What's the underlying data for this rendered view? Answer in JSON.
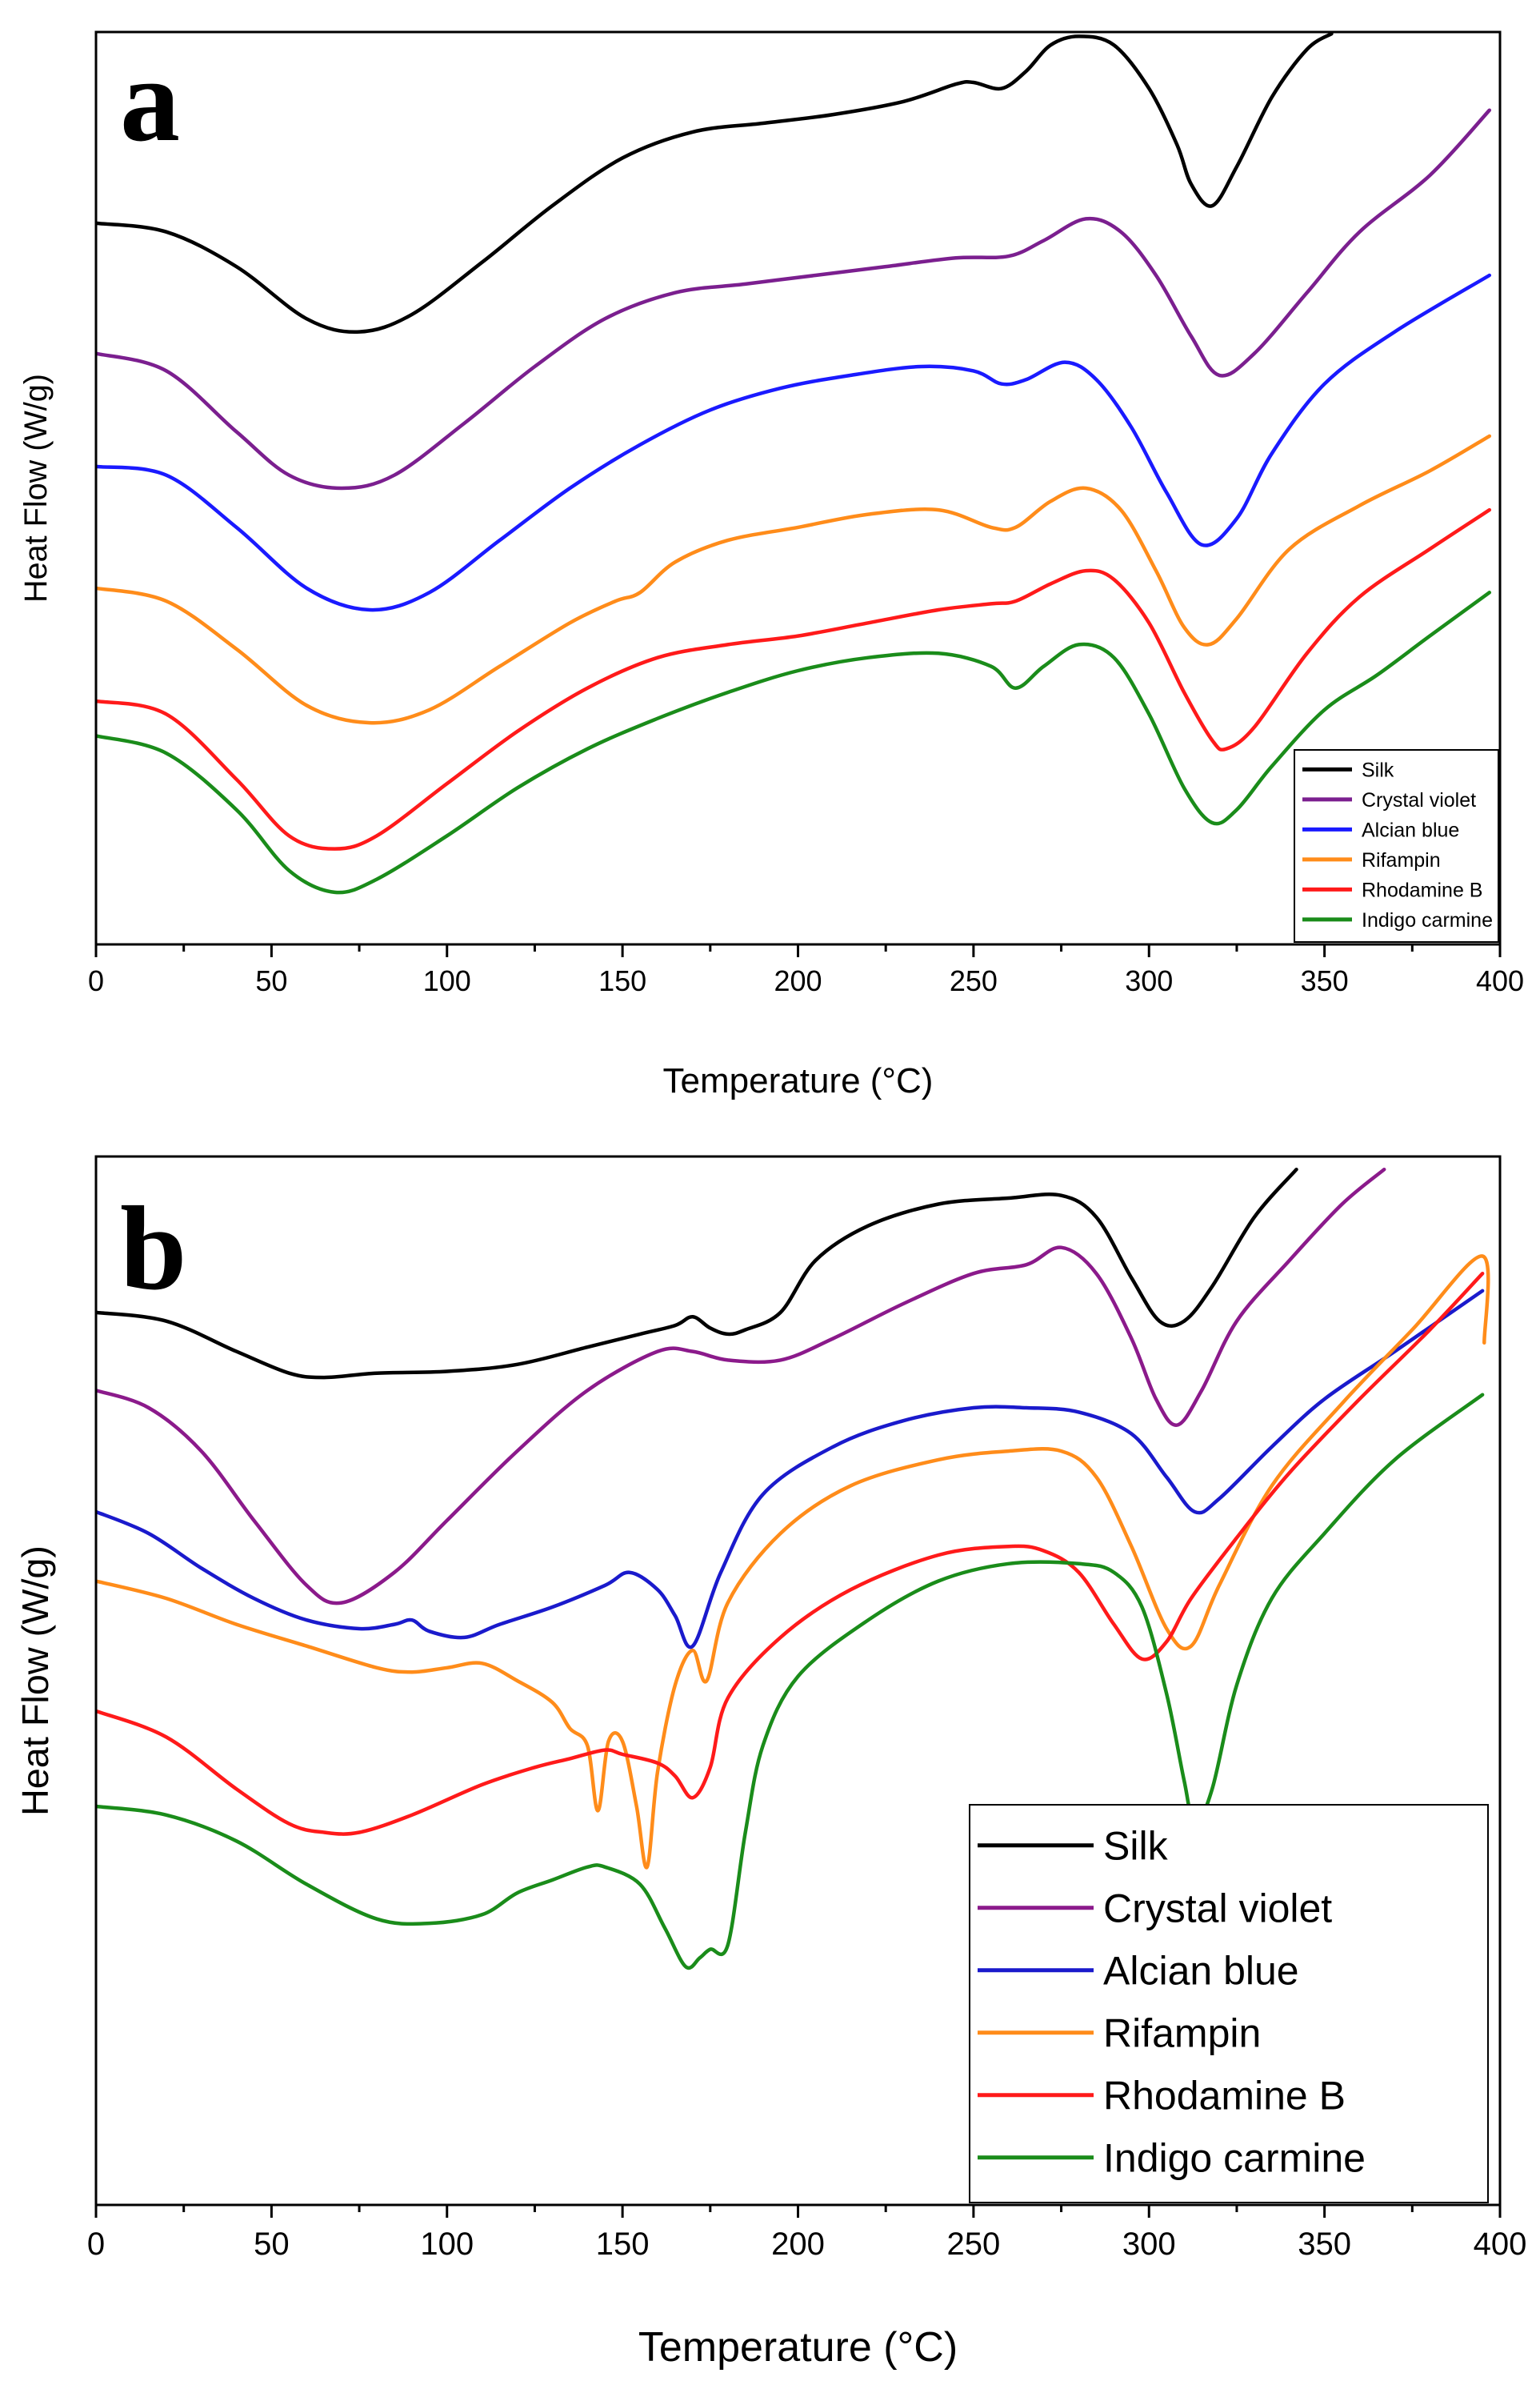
{
  "chart_data": [
    {
      "panel": "a",
      "type": "line",
      "xlabel": "Temperature (°C)",
      "ylabel": "Heat Flow (W/g)",
      "xlim": [
        0,
        400
      ],
      "xticks": [
        0,
        50,
        100,
        150,
        200,
        250,
        300,
        350,
        400
      ],
      "y_tick_labels": false,
      "legend_position": "bottom-right",
      "series": [
        {
          "name": "Silk",
          "color": "#000000",
          "x": [
            0,
            20,
            40,
            60,
            75,
            90,
            110,
            130,
            150,
            170,
            190,
            210,
            230,
            245,
            250,
            258,
            265,
            272,
            280,
            290,
            300,
            308,
            312,
            318,
            325,
            335,
            345,
            352
          ],
          "y": [
            8.8,
            8.7,
            8.3,
            7.7,
            7.55,
            7.75,
            8.35,
            9.0,
            9.55,
            9.85,
            9.95,
            10.05,
            10.2,
            10.4,
            10.42,
            10.35,
            10.55,
            10.85,
            10.95,
            10.85,
            10.35,
            9.7,
            9.25,
            9.0,
            9.45,
            10.25,
            10.8,
            10.98
          ]
        },
        {
          "name": "Crystal violet",
          "color": "#7b1f8f",
          "x": [
            0,
            20,
            40,
            55,
            70,
            85,
            105,
            125,
            145,
            165,
            185,
            205,
            225,
            245,
            260,
            270,
            282,
            292,
            302,
            312,
            320,
            330,
            345,
            360,
            380,
            397
          ],
          "y": [
            7.3,
            7.1,
            6.4,
            5.9,
            5.75,
            5.9,
            6.5,
            7.15,
            7.7,
            8.0,
            8.1,
            8.2,
            8.3,
            8.4,
            8.42,
            8.6,
            8.85,
            8.7,
            8.2,
            7.5,
            7.05,
            7.3,
            8.0,
            8.7,
            9.35,
            10.1
          ]
        },
        {
          "name": "Alcian blue",
          "color": "#1a1aff",
          "x": [
            0,
            20,
            40,
            60,
            78,
            95,
            115,
            135,
            155,
            175,
            195,
            215,
            235,
            250,
            258,
            265,
            276,
            285,
            295,
            305,
            315,
            325,
            335,
            350,
            370,
            397
          ],
          "y": [
            6.0,
            5.9,
            5.3,
            4.6,
            4.35,
            4.55,
            5.15,
            5.75,
            6.25,
            6.65,
            6.9,
            7.05,
            7.15,
            7.1,
            6.95,
            7.0,
            7.2,
            7.0,
            6.45,
            5.7,
            5.1,
            5.4,
            6.15,
            6.95,
            7.55,
            8.2
          ]
        },
        {
          "name": "Rifampin",
          "color": "#ff8c1a",
          "x": [
            0,
            20,
            40,
            60,
            78,
            95,
            115,
            135,
            148,
            155,
            165,
            180,
            200,
            220,
            240,
            255,
            262,
            272,
            282,
            292,
            302,
            310,
            317,
            325,
            340,
            360,
            380,
            397
          ],
          "y": [
            4.6,
            4.45,
            3.9,
            3.25,
            3.05,
            3.2,
            3.7,
            4.2,
            4.45,
            4.55,
            4.9,
            5.15,
            5.3,
            5.45,
            5.5,
            5.3,
            5.3,
            5.6,
            5.75,
            5.5,
            4.8,
            4.15,
            3.95,
            4.25,
            5.05,
            5.55,
            5.95,
            6.35
          ]
        },
        {
          "name": "Rhodamine B",
          "color": "#ff1a1a",
          "x": [
            0,
            20,
            40,
            55,
            68,
            80,
            100,
            120,
            140,
            160,
            180,
            200,
            220,
            240,
            255,
            262,
            272,
            282,
            290,
            300,
            310,
            318,
            322,
            330,
            345,
            360,
            380,
            397
          ],
          "y": [
            3.3,
            3.15,
            2.4,
            1.75,
            1.6,
            1.75,
            2.35,
            2.95,
            3.45,
            3.8,
            3.95,
            4.05,
            4.2,
            4.35,
            4.42,
            4.45,
            4.65,
            4.8,
            4.7,
            4.2,
            3.4,
            2.85,
            2.75,
            3.0,
            3.85,
            4.5,
            5.05,
            5.5
          ]
        },
        {
          "name": "Indigo carmine",
          "color": "#1a8c1a",
          "x": [
            0,
            20,
            40,
            55,
            68,
            80,
            100,
            120,
            140,
            160,
            180,
            200,
            220,
            240,
            255,
            262,
            270,
            280,
            290,
            300,
            310,
            318,
            325,
            335,
            350,
            365,
            380,
            397
          ],
          "y": [
            2.9,
            2.7,
            2.05,
            1.35,
            1.1,
            1.25,
            1.75,
            2.3,
            2.75,
            3.1,
            3.4,
            3.65,
            3.8,
            3.85,
            3.7,
            3.45,
            3.7,
            3.95,
            3.8,
            3.15,
            2.3,
            1.9,
            2.05,
            2.55,
            3.2,
            3.6,
            4.05,
            4.55
          ]
        }
      ]
    },
    {
      "panel": "b",
      "type": "line",
      "xlabel": "Temperature (°C)",
      "ylabel": "Heat Flow (W/g)",
      "xlim": [
        0,
        400
      ],
      "xticks": [
        0,
        50,
        100,
        150,
        200,
        250,
        300,
        350,
        400
      ],
      "y_tick_labels": false,
      "legend_position": "bottom-right",
      "series": [
        {
          "name": "Silk",
          "color": "#000000",
          "x": [
            0,
            20,
            40,
            55,
            65,
            80,
            100,
            120,
            140,
            155,
            165,
            170,
            175,
            180,
            185,
            195,
            205,
            220,
            240,
            260,
            275,
            285,
            295,
            303,
            310,
            318,
            330,
            342
          ],
          "y": [
            10.3,
            10.2,
            9.85,
            9.6,
            9.55,
            9.6,
            9.62,
            9.7,
            9.9,
            10.05,
            10.15,
            10.25,
            10.12,
            10.05,
            10.1,
            10.3,
            10.9,
            11.3,
            11.55,
            11.62,
            11.65,
            11.4,
            10.7,
            10.2,
            10.2,
            10.6,
            11.4,
            11.95
          ]
        },
        {
          "name": "Crystal violet",
          "color": "#8b1a8b",
          "x": [
            0,
            15,
            30,
            45,
            60,
            70,
            85,
            100,
            120,
            140,
            160,
            170,
            180,
            195,
            210,
            230,
            250,
            265,
            275,
            285,
            295,
            302,
            308,
            315,
            325,
            340,
            355,
            367
          ],
          "y": [
            9.4,
            9.2,
            8.7,
            7.9,
            7.15,
            6.95,
            7.3,
            7.9,
            8.7,
            9.4,
            9.85,
            9.85,
            9.75,
            9.75,
            10.0,
            10.4,
            10.75,
            10.85,
            11.05,
            10.75,
            10.0,
            9.3,
            9.0,
            9.4,
            10.2,
            10.9,
            11.55,
            11.95
          ]
        },
        {
          "name": "Alcian blue",
          "color": "#1a1acc",
          "x": [
            0,
            15,
            30,
            45,
            60,
            75,
            85,
            90,
            95,
            105,
            115,
            130,
            145,
            152,
            160,
            165,
            170,
            178,
            190,
            210,
            230,
            250,
            265,
            280,
            295,
            305,
            313,
            320,
            335,
            350,
            370,
            395
          ],
          "y": [
            8.0,
            7.75,
            7.35,
            7.0,
            6.75,
            6.65,
            6.7,
            6.75,
            6.62,
            6.55,
            6.7,
            6.9,
            7.15,
            7.3,
            7.1,
            6.8,
            6.45,
            7.3,
            8.2,
            8.75,
            9.05,
            9.2,
            9.2,
            9.15,
            8.9,
            8.4,
            8.0,
            8.15,
            8.75,
            9.3,
            9.85,
            10.55
          ]
        },
        {
          "name": "Rifampin",
          "color": "#ff8c1a",
          "x": [
            0,
            20,
            40,
            60,
            80,
            90,
            100,
            110,
            120,
            130,
            135,
            140,
            143,
            146,
            150,
            154,
            157,
            160,
            165,
            170,
            174,
            180,
            195,
            215,
            240,
            260,
            275,
            285,
            295,
            305,
            312,
            320,
            335,
            355,
            375,
            395,
            395.5
          ],
          "y": [
            7.2,
            7.0,
            6.7,
            6.45,
            6.2,
            6.15,
            6.2,
            6.25,
            6.05,
            5.8,
            5.5,
            5.3,
            4.55,
            5.35,
            5.35,
            4.6,
            3.9,
            5.0,
            6.0,
            6.4,
            6.05,
            6.95,
            7.75,
            8.3,
            8.6,
            8.7,
            8.7,
            8.4,
            7.6,
            6.65,
            6.45,
            7.15,
            8.3,
            9.25,
            10.1,
            10.95,
            9.95
          ]
        },
        {
          "name": "Rhodamine B",
          "color": "#ff1a1a",
          "x": [
            0,
            20,
            40,
            55,
            65,
            75,
            90,
            110,
            125,
            135,
            145,
            150,
            160,
            165,
            170,
            175,
            180,
            195,
            215,
            240,
            260,
            270,
            280,
            290,
            298,
            305,
            312,
            325,
            340,
            360,
            380,
            395
          ],
          "y": [
            5.7,
            5.4,
            4.8,
            4.4,
            4.3,
            4.3,
            4.5,
            4.85,
            5.05,
            5.15,
            5.25,
            5.2,
            5.1,
            4.95,
            4.7,
            5.05,
            5.85,
            6.55,
            7.1,
            7.5,
            7.6,
            7.55,
            7.3,
            6.7,
            6.3,
            6.5,
            7.0,
            7.7,
            8.45,
            9.3,
            10.1,
            10.75
          ]
        },
        {
          "name": "Indigo carmine",
          "color": "#1a8c1a",
          "x": [
            0,
            20,
            40,
            60,
            80,
            95,
            110,
            120,
            130,
            140,
            145,
            155,
            162,
            168,
            172,
            175,
            180,
            185,
            190,
            200,
            220,
            240,
            260,
            280,
            290,
            298,
            305,
            310,
            313,
            318,
            325,
            335,
            350,
            370,
            395
          ],
          "y": [
            4.6,
            4.5,
            4.2,
            3.7,
            3.3,
            3.25,
            3.35,
            3.6,
            3.75,
            3.9,
            3.9,
            3.7,
            3.2,
            2.75,
            2.85,
            2.95,
            3.0,
            4.3,
            5.3,
            6.1,
            6.75,
            7.2,
            7.4,
            7.4,
            7.3,
            6.9,
            5.9,
            4.9,
            4.4,
            4.8,
            6.0,
            7.0,
            7.75,
            8.6,
            9.35
          ]
        }
      ]
    }
  ]
}
